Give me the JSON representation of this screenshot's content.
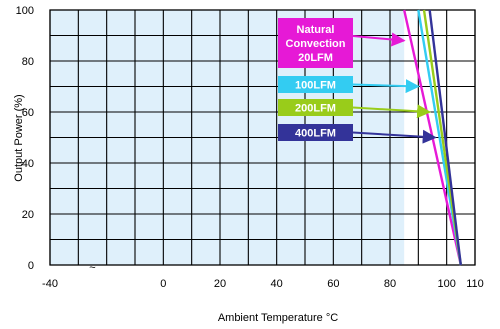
{
  "chart_data": {
    "type": "line",
    "title": "",
    "xlabel": "Ambient Temperature °C",
    "ylabel": "Output Power  (%)",
    "xlim": [
      -40,
      110
    ],
    "ylim": [
      0,
      100
    ],
    "x_ticks": [
      "-40",
      "0",
      "20",
      "40",
      "60",
      "80",
      "100",
      "110"
    ],
    "x_tick_values": [
      -40,
      0,
      20,
      40,
      60,
      80,
      100,
      110
    ],
    "y_ticks": [
      "0",
      "20",
      "40",
      "60",
      "80",
      "100"
    ],
    "y_tick_values": [
      0,
      20,
      40,
      60,
      80,
      100
    ],
    "axis_break_mark": "~",
    "grid": true,
    "shaded_region": {
      "from": -40,
      "to": 85,
      "color": "#dff0fb"
    },
    "series": [
      {
        "name": "Natural Convection 20LFM",
        "label_lines": [
          "Natural",
          "Convection",
          "20LFM"
        ],
        "color": "#e619d6",
        "x": [
          85,
          105
        ],
        "y": [
          100,
          0
        ],
        "label_arrow_target": [
          85,
          88
        ]
      },
      {
        "name": "100LFM",
        "label_lines": [
          "100LFM"
        ],
        "color": "#33ccf2",
        "x": [
          90,
          105
        ],
        "y": [
          100,
          0
        ],
        "label_arrow_target": [
          90,
          70
        ]
      },
      {
        "name": "200LFM",
        "label_lines": [
          "200LFM"
        ],
        "color": "#99cc1a",
        "x": [
          92,
          105
        ],
        "y": [
          100,
          0
        ],
        "label_arrow_target": [
          94,
          60
        ]
      },
      {
        "name": "400LFM",
        "label_lines": [
          "400LFM"
        ],
        "color": "#333399",
        "x": [
          94,
          105
        ],
        "y": [
          100,
          0
        ],
        "label_arrow_target": [
          96,
          50
        ]
      }
    ]
  }
}
